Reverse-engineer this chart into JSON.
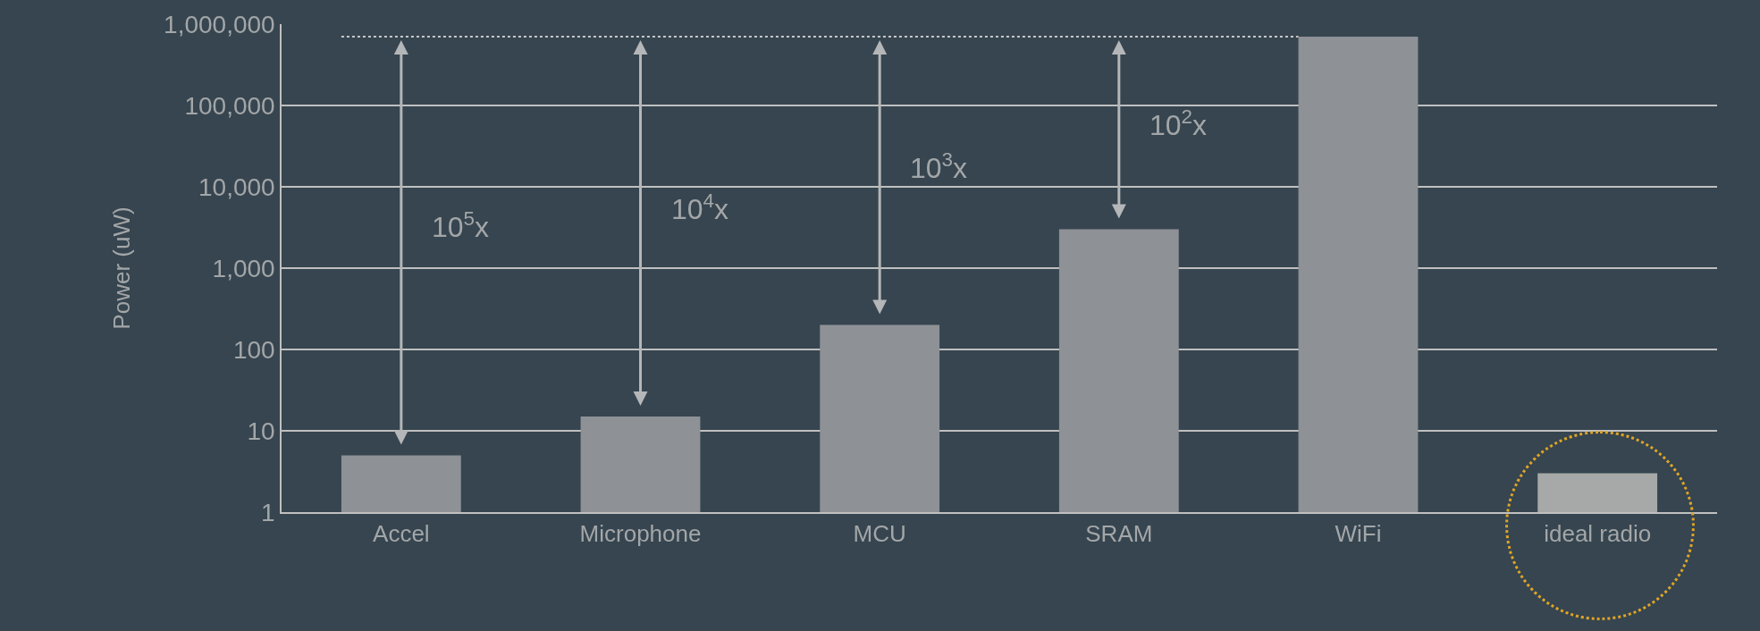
{
  "chart_data": {
    "type": "bar",
    "ylabel": "Power (uW)",
    "categories": [
      "Accel",
      "Microphone",
      "MCU",
      "SRAM",
      "WiFi",
      "ideal radio"
    ],
    "values": [
      5,
      15,
      200,
      3000,
      700000,
      3
    ],
    "colors": [
      "#8e9196",
      "#8e9196",
      "#8e9196",
      "#8e9196",
      "#8e9196",
      "#a6a9a7"
    ],
    "log": true,
    "ylim": [
      1,
      1000000
    ],
    "yticks": [
      1,
      10,
      100,
      {
        "value": 1000,
        "label": "1,000"
      },
      {
        "value": 10000,
        "label": "10,000"
      },
      {
        "value": 100000,
        "label": "100,000"
      },
      {
        "value": 1000000,
        "label": "1,000,000"
      }
    ],
    "grid": "y",
    "ref_lines": [
      {
        "axis": "y",
        "value": 700000,
        "color": "#c8c8c8",
        "line_style": "dotted"
      }
    ],
    "annotations": [
      "10$^{5}$x",
      "10$^{4}$x",
      "10$^{3}$x",
      "10$^{2}$x"
    ]
  }
}
